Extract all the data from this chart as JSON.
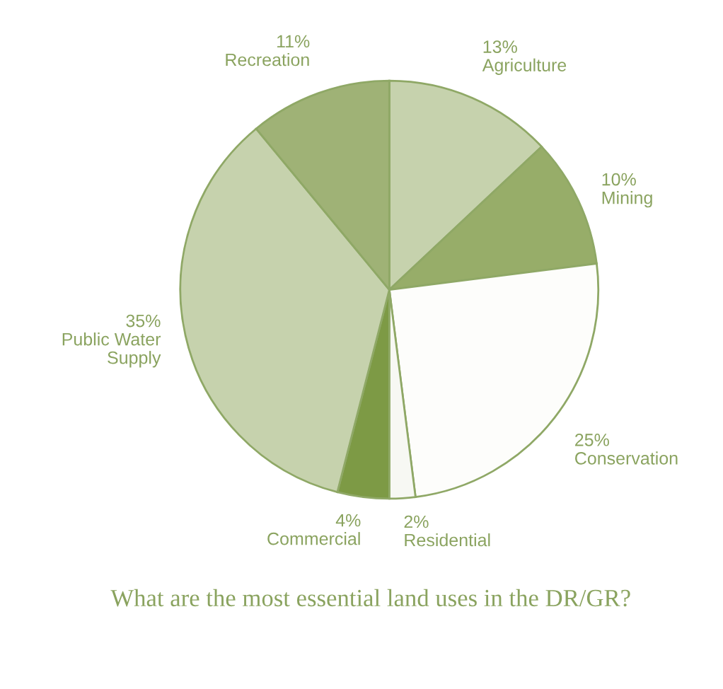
{
  "chart_data": {
    "type": "pie",
    "categories": [
      "Agriculture",
      "Mining",
      "Conservation",
      "Residential",
      "Commercial",
      "Public Water Supply",
      "Recreation"
    ],
    "values": [
      13,
      10,
      25,
      2,
      4,
      35,
      11
    ],
    "value_labels": [
      "13%",
      "10%",
      "25%",
      "2%",
      "4%",
      "35%",
      "11%"
    ],
    "colors": [
      "#c6d2ad",
      "#97ad69",
      "#fdfdfb",
      "#f7f8f3",
      "#7d9a45",
      "#c6d2ad",
      "#9fb276"
    ],
    "annotations": [
      "What are the most essential land uses in the DR/GR?"
    ]
  }
}
